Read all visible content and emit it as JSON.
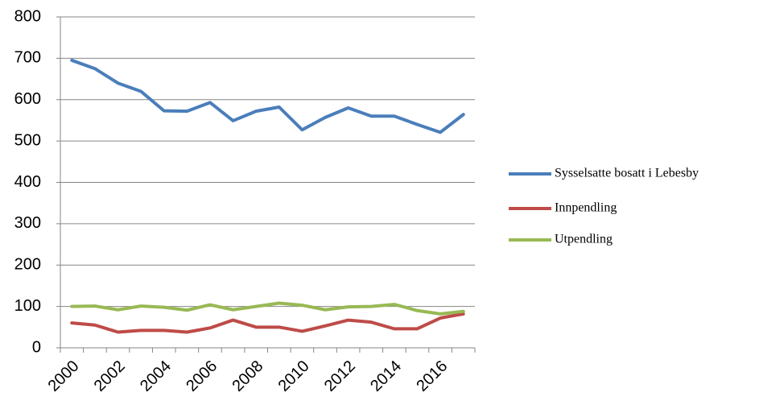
{
  "chart_data": {
    "type": "line",
    "categories": [
      "2000",
      null,
      "2002",
      null,
      "2004",
      null,
      "2006",
      null,
      "2008",
      null,
      "2010",
      null,
      "2012",
      null,
      "2014",
      null,
      "2016",
      null
    ],
    "series": [
      {
        "name": "Sysselsatte bosatt i Lebesby",
        "color": "#4a7ebb",
        "values": [
          695,
          675,
          640,
          620,
          573,
          572,
          593,
          549,
          572,
          582,
          527,
          557,
          580,
          560,
          560,
          540,
          521,
          564
        ]
      },
      {
        "name": "Innpendling",
        "color": "#be4b48",
        "values": [
          60,
          55,
          38,
          42,
          42,
          38,
          48,
          67,
          50,
          50,
          40,
          53,
          67,
          62,
          46,
          46,
          72,
          82
        ]
      },
      {
        "name": "Utpendling",
        "color": "#98b954",
        "values": [
          100,
          101,
          92,
          101,
          98,
          91,
          104,
          92,
          100,
          108,
          103,
          92,
          99,
          100,
          105,
          90,
          82,
          88
        ]
      }
    ],
    "ylim": [
      0,
      800
    ],
    "yticks": [
      0,
      100,
      200,
      300,
      400,
      500,
      600,
      700,
      800
    ],
    "grid": true,
    "legend": "right"
  }
}
